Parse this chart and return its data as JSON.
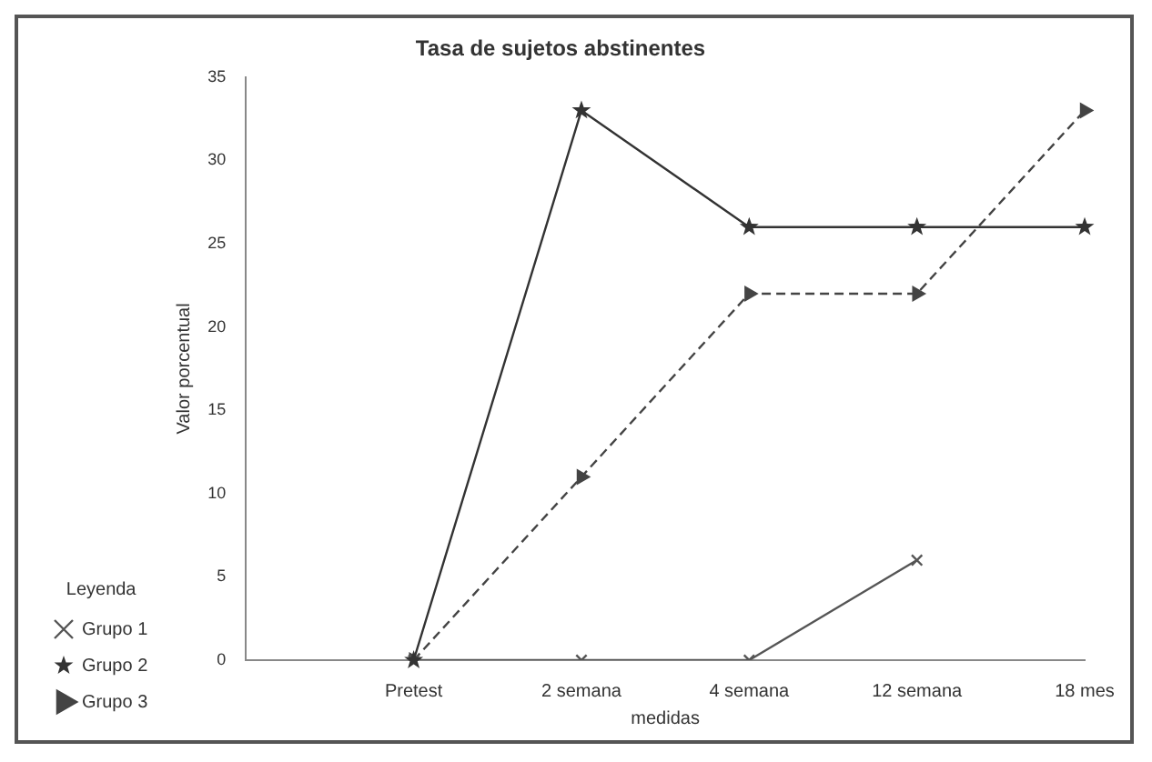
{
  "chart_data": {
    "type": "line",
    "title": "Tasa de sujetos abstinentes",
    "xlabel": "medidas",
    "ylabel": "Valor porcentual",
    "legend_title": "Leyenda",
    "categories": [
      null,
      "Pretest",
      "2 semana",
      "4 semana",
      "12 semana",
      "18 mes"
    ],
    "series": [
      {
        "name": "Grupo 1",
        "color": "#555555",
        "marker": "cross",
        "line_style": "solid",
        "values": [
          null,
          0,
          0,
          0,
          6,
          null
        ]
      },
      {
        "name": "Grupo 2",
        "color": "#333333",
        "marker": "star",
        "line_style": "solid",
        "values": [
          null,
          0,
          33,
          26,
          26,
          26
        ]
      },
      {
        "name": "Grupo 3",
        "color": "#444444",
        "marker": "triangle",
        "line_style": "dashed",
        "values": [
          null,
          0,
          11,
          22,
          22,
          33
        ]
      }
    ],
    "ylim": [
      0,
      35
    ],
    "yticks": [
      0,
      5,
      10,
      15,
      20,
      25,
      30,
      35
    ],
    "grid": false,
    "legend": "bottom left"
  }
}
